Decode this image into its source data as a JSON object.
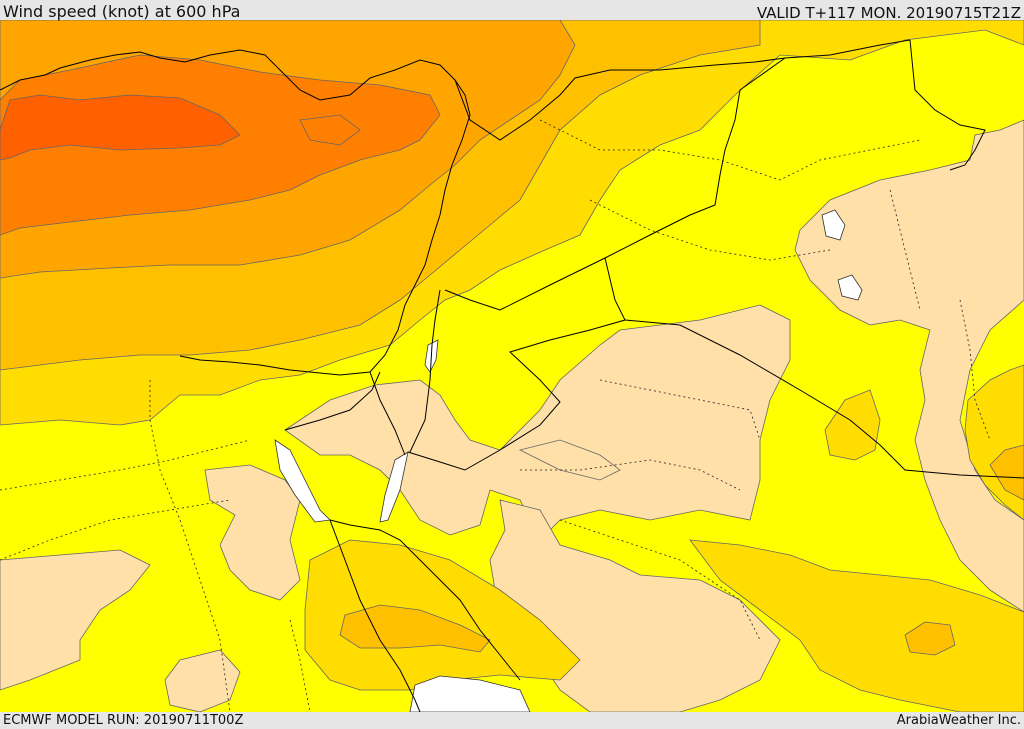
{
  "header": {
    "title": "Wind speed (knot) at 600 hPa",
    "valid": "VALID T+117 MON. 20190715T21Z"
  },
  "footer": {
    "model_run": "ECMWF MODEL RUN: 20190711T00Z",
    "credit": "ArabiaWeather Inc."
  },
  "map": {
    "colors": {
      "water": "#ffffff",
      "level_1": "#ffe0a8",
      "level_2": "#ffff00",
      "level_3": "#ffdd00",
      "level_4": "#ffc000",
      "level_5": "#ffa500",
      "level_6": "#ff8000",
      "level_7": "#ff6000",
      "boundary": "#000000",
      "contour": "#555555"
    }
  }
}
